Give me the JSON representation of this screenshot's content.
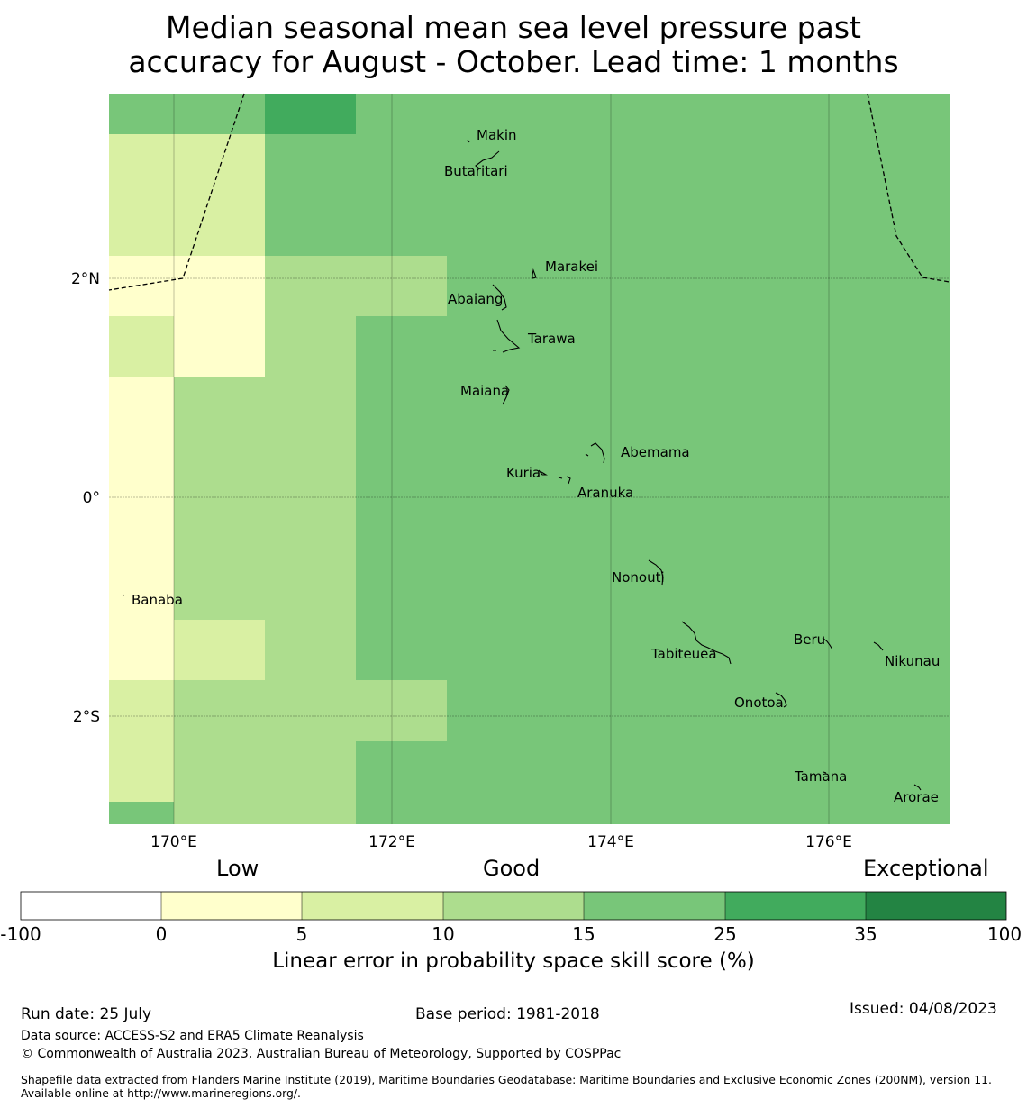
{
  "title_line1": "Median seasonal mean sea level pressure past",
  "title_line2": "accuracy for August - October. Lead time: 1 months",
  "map": {
    "lon_ticks": [
      "170°E",
      "172°E",
      "174°E",
      "176°E"
    ],
    "lat_ticks": [
      "2°N",
      "0°",
      "2°S"
    ],
    "islands": [
      {
        "name": "Makin"
      },
      {
        "name": "Butaritari"
      },
      {
        "name": "Marakei"
      },
      {
        "name": "Abaiang"
      },
      {
        "name": "Tarawa"
      },
      {
        "name": "Maiana"
      },
      {
        "name": "Abemama"
      },
      {
        "name": "Kuria"
      },
      {
        "name": "Aranuka"
      },
      {
        "name": "Nonouti"
      },
      {
        "name": "Banaba"
      },
      {
        "name": "Tabiteuea"
      },
      {
        "name": "Beru"
      },
      {
        "name": "Nikunau"
      },
      {
        "name": "Onotoa"
      },
      {
        "name": "Tamana"
      },
      {
        "name": "Arorae"
      }
    ]
  },
  "colorbar": {
    "category_labels": [
      "Low",
      "Good",
      "Exceptional"
    ],
    "bounds": [
      "-100",
      "0",
      "5",
      "10",
      "15",
      "25",
      "35",
      "100"
    ],
    "colors": [
      "#ffffff",
      "#ffffcc",
      "#d9f0a3",
      "#addd8e",
      "#78c679",
      "#41ab5d",
      "#238443"
    ],
    "title": "Linear error in probability space skill score (%)"
  },
  "footer": {
    "run_date": "Run date: 25 July",
    "base_period": "Base period: 1981-2018",
    "issued": "Issued: 04/08/2023",
    "data_source": "Data source: ACCESS-S2 and ERA5 Climate Reanalysis",
    "copyright": "© Commonwealth of Australia 2023, Australian Bureau of Meteorology, Supported by COSPPac",
    "shapefile": "Shapefile data extracted from Flanders Marine Institute (2019), Maritime Boundaries Geodatabase: Maritime Boundaries and Exclusive Economic Zones (200NM), version 11. Available online at http://www.marineregions.org/."
  }
}
